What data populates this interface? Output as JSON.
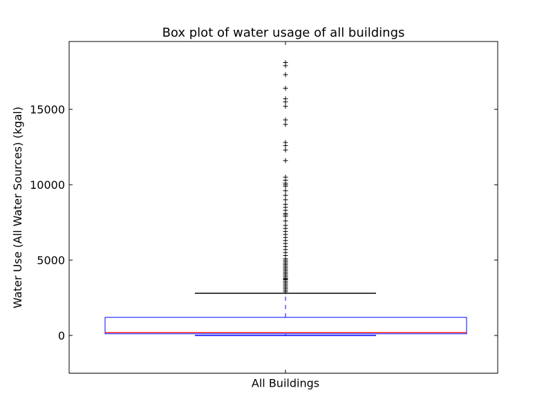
{
  "chart_data": {
    "type": "box",
    "title": "Box plot of water usage of all buildings",
    "xlabel": "",
    "ylabel": "Water Use (All Water Sources) (kgal)",
    "categories": [
      "All Buildings"
    ],
    "ylim": [
      -2500,
      19500
    ],
    "yticks": [
      0,
      5000,
      10000,
      15000
    ],
    "ytick_labels": [
      "0",
      "5000",
      "10000",
      "15000"
    ],
    "grid": false,
    "box": {
      "min_whisker": 0,
      "q1": 110,
      "median": 200,
      "q3": 1200,
      "max_whisker": 2800
    },
    "outliers": [
      2900,
      3000,
      3100,
      3200,
      3300,
      3400,
      3500,
      3600,
      3700,
      3750,
      3800,
      3900,
      4000,
      4100,
      4200,
      4300,
      4400,
      4500,
      4600,
      4700,
      4800,
      4900,
      5000,
      5100,
      5300,
      5500,
      5700,
      5900,
      6100,
      6300,
      6500,
      6700,
      6900,
      7100,
      7300,
      7600,
      7900,
      8000,
      8100,
      8300,
      8500,
      8700,
      9000,
      9300,
      9600,
      9900,
      10000,
      10100,
      10300,
      10500,
      11600,
      12300,
      12600,
      12800,
      14000,
      14300,
      15200,
      15500,
      15700,
      16400,
      17300,
      17900,
      18100
    ],
    "colors": {
      "box": "#0000ff",
      "median": "#ff0000",
      "whisker": "#0000ff",
      "cap": "#000000",
      "outlier": "#000000",
      "frame": "#000000"
    }
  }
}
